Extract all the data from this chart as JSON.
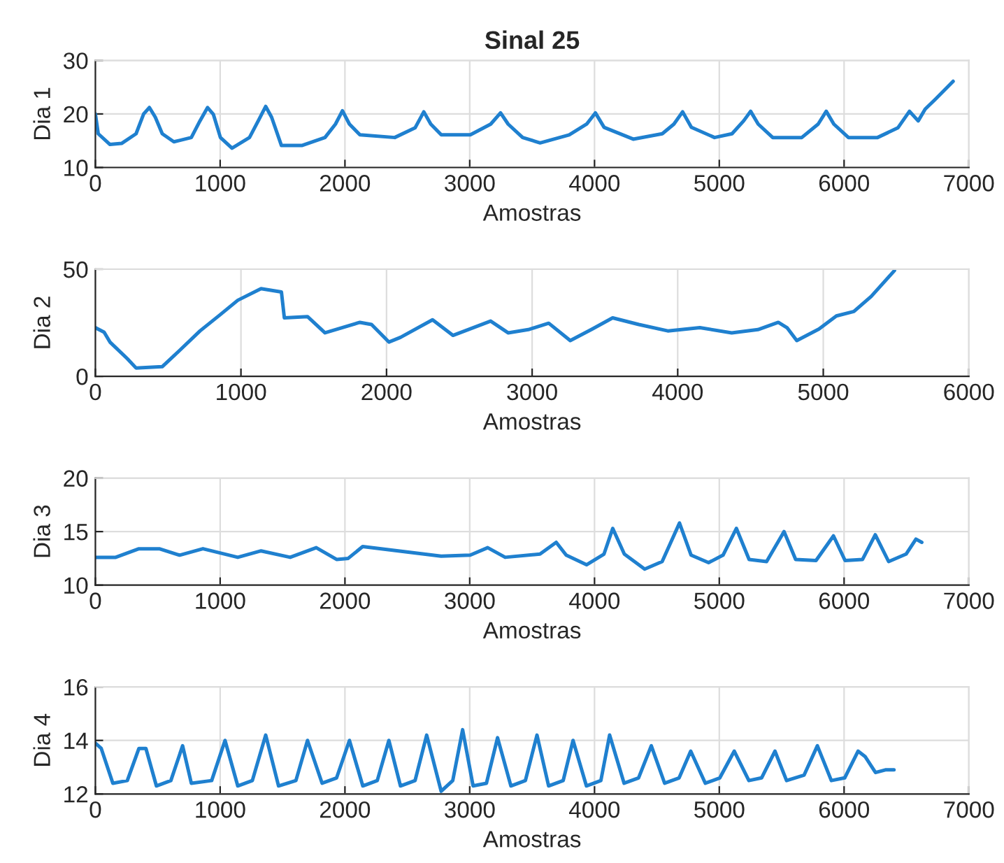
{
  "chart_data": [
    {
      "type": "line",
      "title": "Sinal 25",
      "xlabel": "Amostras",
      "ylabel": "Dia 1",
      "xlim": [
        0,
        7000
      ],
      "xticks": [
        0,
        1000,
        2000,
        3000,
        4000,
        5000,
        6000,
        7000
      ],
      "ylim": [
        10,
        30
      ],
      "yticks": [
        10,
        20,
        30
      ],
      "grid": true,
      "marker": "none",
      "line_style": "solid",
      "series": [
        {
          "color": "#1f80cf",
          "x": [
            0,
            23,
            117,
            210,
            326,
            387,
            433,
            480,
            536,
            629,
            769,
            838,
            899,
            946,
            1002,
            1095,
            1235,
            1305,
            1365,
            1412,
            1491,
            1654,
            1840,
            1924,
            1980,
            2036,
            2120,
            2399,
            2562,
            2632,
            2688,
            2772,
            3005,
            3168,
            3247,
            3308,
            3424,
            3564,
            3797,
            3937,
            4007,
            4077,
            4310,
            4543,
            4636,
            4706,
            4776,
            4962,
            5102,
            5195,
            5251,
            5312,
            5428,
            5661,
            5792,
            5857,
            5918,
            6035,
            6268,
            6431,
            6524,
            6594,
            6650,
            6734,
            6874
          ],
          "values": [
            20,
            16.3,
            14.3,
            14.5,
            16.3,
            20,
            21.2,
            19.4,
            16.3,
            14.8,
            15.6,
            18.7,
            21.2,
            19.9,
            15.6,
            13.6,
            15.6,
            18.7,
            21.4,
            19.4,
            14.1,
            14.1,
            15.6,
            18.1,
            20.6,
            18.1,
            16.1,
            15.6,
            17.4,
            20.4,
            18.1,
            16.1,
            16.1,
            18.1,
            20.2,
            18.1,
            15.6,
            14.6,
            16.1,
            18.1,
            20.2,
            17.5,
            15.3,
            16.3,
            18.1,
            20.4,
            17.5,
            15.6,
            16.3,
            18.7,
            20.5,
            18.1,
            15.6,
            15.6,
            18.1,
            20.5,
            18.1,
            15.6,
            15.6,
            17.4,
            20.5,
            18.7,
            20.9,
            22.8,
            26.1
          ]
        }
      ]
    },
    {
      "type": "line",
      "xlabel": "Amostras",
      "ylabel": "Dia 2",
      "xlim": [
        0,
        6000
      ],
      "xticks": [
        0,
        1000,
        2000,
        3000,
        4000,
        5000,
        6000
      ],
      "ylim": [
        0,
        50
      ],
      "yticks": [
        0,
        50
      ],
      "grid": true,
      "marker": "none",
      "line_style": "solid",
      "series": [
        {
          "color": "#1f80cf",
          "x": [
            0,
            60,
            100,
            220,
            279,
            459,
            579,
            719,
            858,
            978,
            1138,
            1278,
            1298,
            1457,
            1577,
            1817,
            1897,
            2016,
            2096,
            2316,
            2456,
            2715,
            2835,
            2974,
            3114,
            3262,
            3413,
            3553,
            3733,
            3932,
            4152,
            4371,
            4551,
            4691,
            4751,
            4818,
            4970,
            5090,
            5210,
            5329,
            5489
          ],
          "values": [
            22.7,
            20.6,
            16,
            8.2,
            3.9,
            4.5,
            12.1,
            21.2,
            28.8,
            35.5,
            40.9,
            39.4,
            27.3,
            27.9,
            20.3,
            25.2,
            24.2,
            16,
            18.2,
            26.4,
            19.1,
            25.8,
            20.3,
            21.8,
            24.8,
            16.7,
            22.1,
            27.3,
            24.2,
            21.2,
            22.7,
            20.3,
            21.8,
            25.2,
            22.7,
            16.7,
            22.1,
            28.2,
            30.3,
            37.3,
            49.4
          ]
        }
      ]
    },
    {
      "type": "line",
      "xlabel": "Amostras",
      "ylabel": "Dia 3",
      "xlim": [
        0,
        7000
      ],
      "xticks": [
        0,
        1000,
        2000,
        3000,
        4000,
        5000,
        6000,
        7000
      ],
      "ylim": [
        10,
        20
      ],
      "yticks": [
        10,
        15,
        20
      ],
      "grid": true,
      "marker": "none",
      "line_style": "solid",
      "series": [
        {
          "color": "#1f80cf",
          "x": [
            0,
            163,
            349,
            512,
            675,
            862,
            1141,
            1328,
            1561,
            1770,
            1933,
            2026,
            2142,
            2771,
            3004,
            3144,
            3284,
            3563,
            3693,
            3773,
            3936,
            4076,
            4146,
            4239,
            4402,
            4542,
            4681,
            4774,
            4914,
            5030,
            5137,
            5239,
            5379,
            5519,
            5612,
            5775,
            5915,
            6008,
            6148,
            6250,
            6357,
            6497,
            6576,
            6623
          ],
          "values": [
            12.6,
            12.6,
            13.4,
            13.4,
            12.8,
            13.4,
            12.6,
            13.2,
            12.6,
            13.5,
            12.4,
            12.5,
            13.6,
            12.7,
            12.8,
            13.5,
            12.6,
            12.9,
            14,
            12.8,
            11.9,
            12.9,
            15.3,
            12.9,
            11.5,
            12.2,
            15.8,
            12.8,
            12.1,
            12.8,
            15.3,
            12.4,
            12.2,
            15,
            12.4,
            12.3,
            14.6,
            12.3,
            12.4,
            14.7,
            12.2,
            12.9,
            14.3,
            14
          ]
        }
      ]
    },
    {
      "type": "line",
      "xlabel": "Amostras",
      "ylabel": "Dia 4",
      "xlim": [
        0,
        7000
      ],
      "xticks": [
        0,
        1000,
        2000,
        3000,
        4000,
        5000,
        6000,
        7000
      ],
      "ylim": [
        12,
        16
      ],
      "yticks": [
        12,
        14,
        16
      ],
      "grid": true,
      "marker": "none",
      "line_style": "solid",
      "series": [
        {
          "color": "#1f80cf",
          "x": [
            0,
            47,
            140,
            256,
            349,
            405,
            489,
            605,
            699,
            769,
            932,
            1039,
            1141,
            1258,
            1365,
            1468,
            1607,
            1700,
            1817,
            1933,
            2036,
            2143,
            2259,
            2352,
            2445,
            2562,
            2655,
            2771,
            2864,
            2943,
            3027,
            3134,
            3223,
            3330,
            3446,
            3539,
            3632,
            3749,
            3828,
            3935,
            4051,
            4121,
            4237,
            4353,
            4455,
            4562,
            4678,
            4771,
            4888,
            5004,
            5120,
            5237,
            5339,
            5446,
            5539,
            5679,
            5786,
            5898,
            6005,
            6112,
            6168,
            6252,
            6331,
            6400
          ],
          "values": [
            13.9,
            13.7,
            12.4,
            12.5,
            13.7,
            13.7,
            12.3,
            12.5,
            13.8,
            12.4,
            12.5,
            14,
            12.3,
            12.5,
            14.2,
            12.3,
            12.5,
            14,
            12.4,
            12.6,
            14,
            12.3,
            12.5,
            14,
            12.3,
            12.5,
            14.2,
            12.1,
            12.5,
            14.4,
            12.3,
            12.4,
            14.1,
            12.3,
            12.5,
            14.2,
            12.3,
            12.5,
            14,
            12.3,
            12.5,
            14.2,
            12.4,
            12.6,
            13.8,
            12.4,
            12.6,
            13.6,
            12.4,
            12.6,
            13.6,
            12.5,
            12.6,
            13.6,
            12.5,
            12.7,
            13.8,
            12.5,
            12.6,
            13.6,
            13.4,
            12.8,
            12.9,
            12.9
          ]
        }
      ]
    }
  ]
}
